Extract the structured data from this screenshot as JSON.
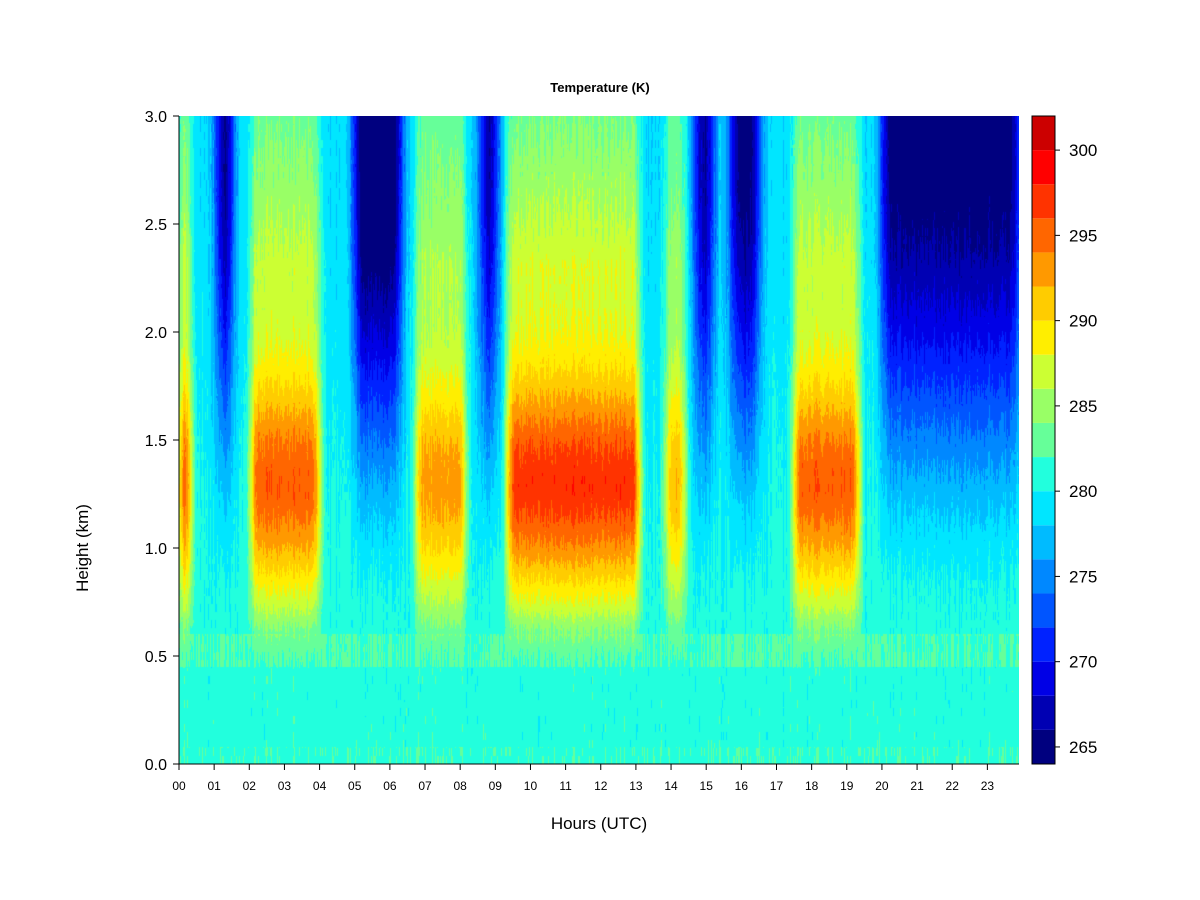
{
  "chart_data": {
    "type": "heatmap",
    "title": "Temperature (K)",
    "xlabel": "Hours (UTC)",
    "ylabel": "Height (km)",
    "x_tick_labels": [
      "00",
      "01",
      "02",
      "03",
      "04",
      "05",
      "06",
      "07",
      "08",
      "09",
      "10",
      "11",
      "12",
      "13",
      "14",
      "15",
      "16",
      "17",
      "18",
      "19",
      "20",
      "21",
      "22",
      "23"
    ],
    "x_ticks": [
      0,
      1,
      2,
      3,
      4,
      5,
      6,
      7,
      8,
      9,
      10,
      11,
      12,
      13,
      14,
      15,
      16,
      17,
      18,
      19,
      20,
      21,
      22,
      23
    ],
    "xlim": [
      0,
      23.9
    ],
    "y_tick_labels": [
      "0.0",
      "0.5",
      "1.0",
      "1.5",
      "2.0",
      "2.5",
      "3.0"
    ],
    "y_ticks": [
      0.0,
      0.5,
      1.0,
      1.5,
      2.0,
      2.5,
      3.0
    ],
    "ylim": [
      0,
      3.0
    ],
    "colorbar": {
      "levels": [
        264,
        266,
        268,
        270,
        272,
        274,
        276,
        278,
        280,
        282,
        284,
        286,
        288,
        290,
        292,
        294,
        296,
        298,
        300,
        302
      ],
      "colors": [
        "#00007f",
        "#0000b3",
        "#0000e6",
        "#0022ff",
        "#0055ff",
        "#0088ff",
        "#00bbff",
        "#00e6ff",
        "#22ffdd",
        "#66ff99",
        "#99ff66",
        "#ccff33",
        "#ffee00",
        "#ffcc00",
        "#ff9900",
        "#ff6600",
        "#ff3300",
        "#ff0000",
        "#cc0000",
        "#880000"
      ],
      "tick_values": [
        265,
        270,
        275,
        280,
        285,
        290,
        295,
        300
      ],
      "tick_labels": [
        "265",
        "270",
        "275",
        "280",
        "285",
        "290",
        "295",
        "300"
      ]
    },
    "pattern": {
      "warm_bands_hours": [
        [
          0.0,
          0.35,
          297
        ],
        [
          2.05,
          4.0,
          297
        ],
        [
          6.75,
          8.15,
          294
        ],
        [
          9.35,
          13.1,
          299
        ],
        [
          13.85,
          14.4,
          293
        ],
        [
          17.5,
          19.35,
          297
        ]
      ],
      "cold_bands_hours": [
        [
          1.1,
          1.5,
          266
        ],
        [
          5.0,
          6.3,
          265
        ],
        [
          8.6,
          9.05,
          268
        ],
        [
          14.7,
          15.2,
          268
        ],
        [
          15.7,
          16.5,
          267
        ],
        [
          20.0,
          23.9,
          267
        ]
      ],
      "warm_core_height_km": 1.25,
      "surface_temperature_K": 281
    },
    "grid": false,
    "legend": "colorbar-right"
  }
}
